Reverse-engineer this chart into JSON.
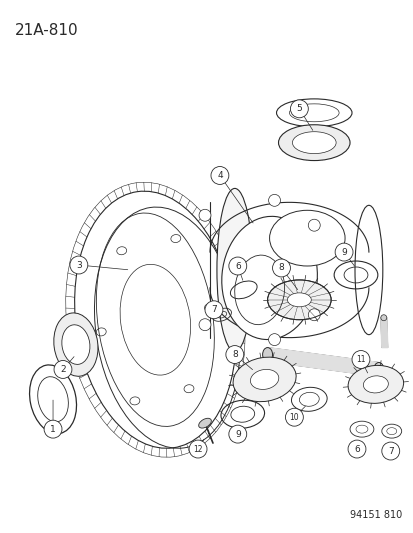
{
  "title": "21A-810",
  "footer": "94151 810",
  "bg_color": "#ffffff",
  "line_color": "#2a2a2a",
  "title_fontsize": 11,
  "footer_fontsize": 7,
  "figsize": [
    4.14,
    5.33
  ],
  "dpi": 100
}
